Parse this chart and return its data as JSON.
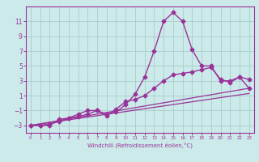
{
  "title": "",
  "xlabel": "Windchill (Refroidissement éolien,°C)",
  "bg_color": "#cceaea",
  "grid_color": "#aacccc",
  "line_color": "#993399",
  "xlim": [
    -0.5,
    23.5
  ],
  "ylim": [
    -4.0,
    13.0
  ],
  "yticks": [
    -3,
    -1,
    1,
    3,
    5,
    7,
    9,
    11
  ],
  "xticks": [
    0,
    1,
    2,
    3,
    4,
    5,
    6,
    7,
    8,
    9,
    10,
    11,
    12,
    13,
    14,
    15,
    16,
    17,
    18,
    19,
    20,
    21,
    22,
    23
  ],
  "series": [
    {
      "x": [
        0,
        1,
        2,
        3,
        4,
        5,
        6,
        7,
        8,
        9,
        10,
        11,
        12,
        13,
        14,
        15,
        16,
        17,
        18,
        19,
        20,
        21,
        22,
        23
      ],
      "y": [
        -3,
        -3,
        -3,
        -2.2,
        -2,
        -1.5,
        -1.0,
        -1.0,
        -1.5,
        -1.2,
        -0.2,
        1.2,
        3.5,
        7,
        11,
        12.2,
        11,
        7.2,
        5.0,
        5.0,
        3.0,
        3.0,
        3.5,
        2.0
      ],
      "marker": "D",
      "markersize": 2.5,
      "linewidth": 1.0
    },
    {
      "x": [
        0,
        1,
        2,
        3,
        4,
        5,
        6,
        7,
        8,
        9,
        10,
        11,
        12,
        13,
        14,
        15,
        16,
        17,
        18,
        19,
        20,
        21,
        22,
        23
      ],
      "y": [
        -3,
        -3,
        -2.8,
        -2.5,
        -2.0,
        -1.8,
        -1.5,
        -1.0,
        -1.7,
        -0.8,
        0.2,
        0.5,
        1.0,
        2.0,
        3.0,
        3.8,
        4.0,
        4.2,
        4.5,
        4.8,
        3.2,
        2.8,
        3.5,
        3.2
      ],
      "marker": "D",
      "markersize": 2.5,
      "linewidth": 1.0
    },
    {
      "x": [
        0,
        23
      ],
      "y": [
        -3,
        2.0
      ],
      "marker": null,
      "markersize": 0,
      "linewidth": 0.9
    },
    {
      "x": [
        0,
        23
      ],
      "y": [
        -3,
        1.3
      ],
      "marker": null,
      "markersize": 0,
      "linewidth": 0.9
    }
  ]
}
